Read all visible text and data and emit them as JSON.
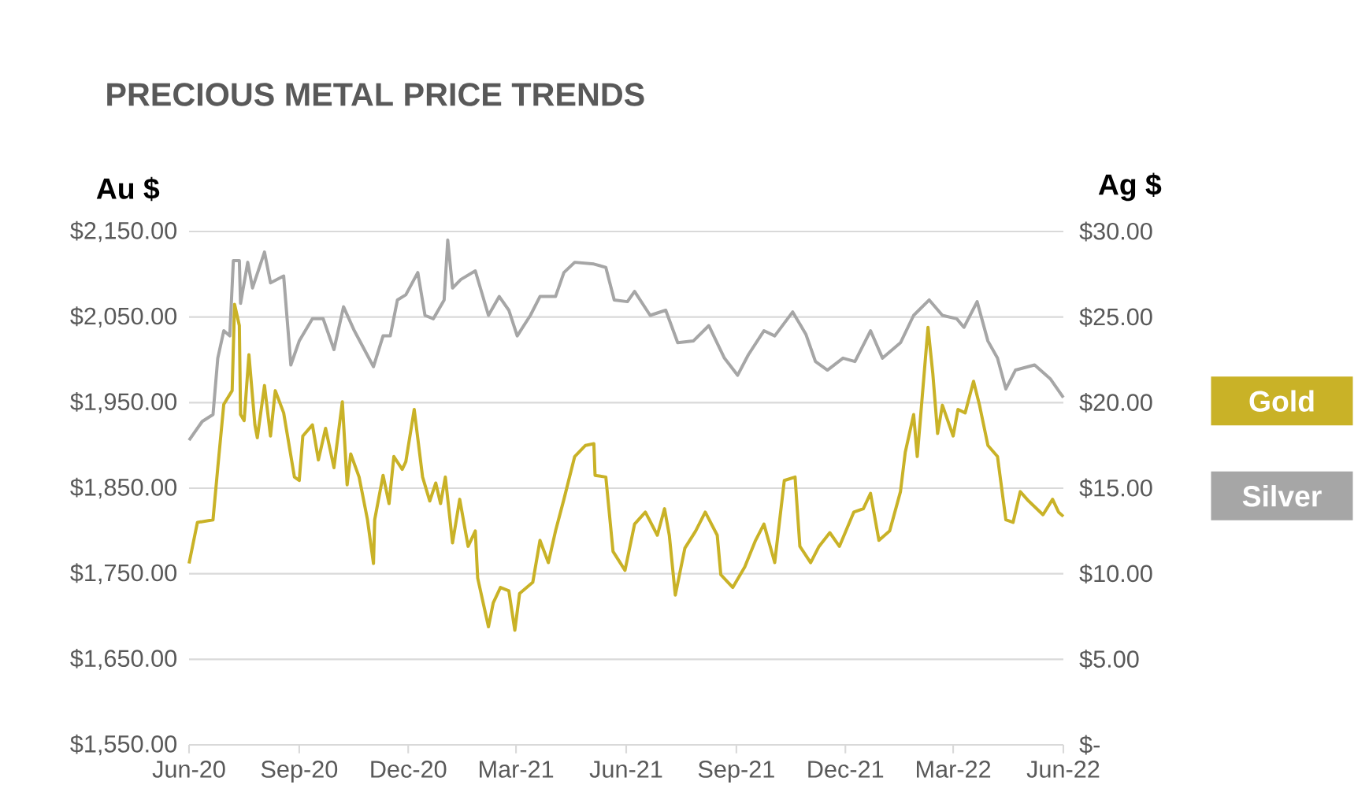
{
  "chart_data": {
    "type": "line",
    "title": "PRECIOUS METAL PRICE TRENDS",
    "ylabel": "Au $",
    "y2label": "Ag  $",
    "xlim": [
      "2020-06-01",
      "2022-06-01"
    ],
    "xticks": [
      {
        "value": "2020-06",
        "label": "Jun-20"
      },
      {
        "value": "2020-09",
        "label": "Sep-20"
      },
      {
        "value": "2020-12",
        "label": "Dec-20"
      },
      {
        "value": "2021-03",
        "label": "Mar-21"
      },
      {
        "value": "2021-06",
        "label": "Jun-21"
      },
      {
        "value": "2021-09",
        "label": "Sep-21"
      },
      {
        "value": "2021-12",
        "label": "Dec-21"
      },
      {
        "value": "2022-03",
        "label": "Mar-22"
      },
      {
        "value": "2022-06",
        "label": "Jun-22"
      }
    ],
    "ylim": [
      1550,
      2150
    ],
    "yticks": [
      {
        "value": 1550,
        "label": "$1,550.00"
      },
      {
        "value": 1650,
        "label": "$1,650.00"
      },
      {
        "value": 1750,
        "label": "$1,750.00"
      },
      {
        "value": 1850,
        "label": "$1,850.00"
      },
      {
        "value": 1950,
        "label": "$1,950.00"
      },
      {
        "value": 2050,
        "label": "$2,050.00"
      },
      {
        "value": 2150,
        "label": "$2,150.00"
      }
    ],
    "y2lim": [
      0,
      30
    ],
    "y2ticks": [
      {
        "value": 0,
        "label": "$-"
      },
      {
        "value": 5,
        "label": "$5.00"
      },
      {
        "value": 10,
        "label": "$10.00"
      },
      {
        "value": 15,
        "label": "$15.00"
      },
      {
        "value": 20,
        "label": "$20.00"
      },
      {
        "value": 25,
        "label": "$25.00"
      },
      {
        "value": 30,
        "label": "$30.00"
      }
    ],
    "grid": "y",
    "legend": "right",
    "line_style": "solid",
    "series": [
      {
        "name": "Gold",
        "color": "#c9b227",
        "axis": "y",
        "x": [
          "2020-06-01",
          "2020-06-08",
          "2020-06-21",
          "2020-06-25",
          "2020-06-30",
          "2020-07-07",
          "2020-07-09",
          "2020-07-13",
          "2020-07-14",
          "2020-07-17",
          "2020-07-21",
          "2020-07-26",
          "2020-07-28",
          "2020-08-03",
          "2020-08-08",
          "2020-08-12",
          "2020-08-19",
          "2020-08-28",
          "2020-09-01",
          "2020-09-04",
          "2020-09-12",
          "2020-09-17",
          "2020-09-23",
          "2020-09-30",
          "2020-10-07",
          "2020-10-11",
          "2020-10-14",
          "2020-10-21",
          "2020-10-28",
          "2020-11-02",
          "2020-11-03",
          "2020-11-10",
          "2020-11-15",
          "2020-11-19",
          "2020-11-26",
          "2020-11-29",
          "2020-12-06",
          "2020-12-13",
          "2020-12-19",
          "2020-12-24",
          "2020-12-28",
          "2021-01-01",
          "2021-01-07",
          "2021-01-13",
          "2021-01-20",
          "2021-01-26",
          "2021-01-28",
          "2021-02-06",
          "2021-02-10",
          "2021-02-16",
          "2021-02-23",
          "2021-02-28",
          "2021-03-04",
          "2021-03-15",
          "2021-03-21",
          "2021-03-28",
          "2021-04-03",
          "2021-04-10",
          "2021-04-19",
          "2021-04-28",
          "2021-05-05",
          "2021-05-06",
          "2021-05-15",
          "2021-05-21",
          "2021-05-31",
          "2021-06-08",
          "2021-06-17",
          "2021-06-27",
          "2021-07-03",
          "2021-07-07",
          "2021-07-12",
          "2021-07-20",
          "2021-07-29",
          "2021-08-06",
          "2021-08-16",
          "2021-08-19",
          "2021-08-29",
          "2021-09-08",
          "2021-09-17",
          "2021-09-24",
          "2021-10-03",
          "2021-10-11",
          "2021-10-20",
          "2021-10-24",
          "2021-11-02",
          "2021-11-09",
          "2021-11-18",
          "2021-11-26",
          "2021-12-08",
          "2021-12-16",
          "2021-12-22",
          "2021-12-29",
          "2022-01-07",
          "2022-01-16",
          "2022-01-20",
          "2022-01-27",
          "2022-01-30",
          "2022-02-08",
          "2022-02-12",
          "2022-02-16",
          "2022-02-20",
          "2022-03-01",
          "2022-03-05",
          "2022-03-11",
          "2022-03-18",
          "2022-03-23",
          "2022-03-30",
          "2022-04-07",
          "2022-04-14",
          "2022-04-20",
          "2022-04-26",
          "2022-05-03",
          "2022-05-15",
          "2022-05-23",
          "2022-05-28",
          "2022-06-01"
        ],
        "values": [
          1762,
          1810,
          1813,
          1874,
          1948,
          1964,
          2065,
          2040,
          1936,
          1929,
          2006,
          1924,
          1909,
          1970,
          1911,
          1964,
          1938,
          1863,
          1859,
          1911,
          1924,
          1883,
          1920,
          1874,
          1951,
          1854,
          1890,
          1863,
          1813,
          1762,
          1813,
          1865,
          1832,
          1887,
          1872,
          1881,
          1942,
          1863,
          1835,
          1856,
          1832,
          1863,
          1786,
          1837,
          1782,
          1800,
          1745,
          1688,
          1716,
          1734,
          1730,
          1684,
          1727,
          1740,
          1789,
          1763,
          1800,
          1837,
          1887,
          1900,
          1902,
          1865,
          1863,
          1776,
          1754,
          1808,
          1822,
          1795,
          1826,
          1795,
          1725,
          1780,
          1800,
          1822,
          1795,
          1749,
          1734,
          1758,
          1789,
          1808,
          1763,
          1859,
          1863,
          1782,
          1763,
          1782,
          1798,
          1782,
          1822,
          1826,
          1844,
          1789,
          1800,
          1846,
          1892,
          1936,
          1887,
          2038,
          1984,
          1914,
          1947,
          1911,
          1942,
          1938,
          1975,
          1947,
          1900,
          1887,
          1813,
          1810,
          1846,
          1835,
          1819,
          1837,
          1822,
          1817
        ]
      },
      {
        "name": "Silver",
        "color": "#a6a6a6",
        "axis": "y2",
        "x": [
          "2020-06-01",
          "2020-06-12",
          "2020-06-21",
          "2020-06-25",
          "2020-06-30",
          "2020-07-05",
          "2020-07-08",
          "2020-07-13",
          "2020-07-14",
          "2020-07-20",
          "2020-07-24",
          "2020-08-03",
          "2020-08-08",
          "2020-08-19",
          "2020-08-25",
          "2020-09-01",
          "2020-09-12",
          "2020-09-21",
          "2020-09-30",
          "2020-10-08",
          "2020-10-17",
          "2020-11-02",
          "2020-11-10",
          "2020-11-16",
          "2020-11-22",
          "2020-11-29",
          "2020-12-09",
          "2020-12-15",
          "2020-12-22",
          "2020-12-31",
          "2021-01-03",
          "2021-01-07",
          "2021-01-14",
          "2021-01-26",
          "2021-02-06",
          "2021-02-15",
          "2021-02-23",
          "2021-03-02",
          "2021-03-13",
          "2021-03-21",
          "2021-04-03",
          "2021-04-10",
          "2021-04-19",
          "2021-05-05",
          "2021-05-15",
          "2021-05-22",
          "2021-06-02",
          "2021-06-08",
          "2021-06-21",
          "2021-07-04",
          "2021-07-14",
          "2021-07-27",
          "2021-08-09",
          "2021-08-22",
          "2021-09-02",
          "2021-09-11",
          "2021-09-24",
          "2021-10-03",
          "2021-10-18",
          "2021-10-29",
          "2021-11-06",
          "2021-11-16",
          "2021-11-29",
          "2021-12-09",
          "2021-12-22",
          "2022-01-01",
          "2022-01-16",
          "2022-01-27",
          "2022-02-09",
          "2022-02-20",
          "2022-03-04",
          "2022-03-10",
          "2022-03-21",
          "2022-03-30",
          "2022-04-07",
          "2022-04-14",
          "2022-04-22",
          "2022-05-08",
          "2022-05-21",
          "2022-06-01"
        ],
        "values": [
          17.8,
          18.9,
          19.3,
          22.6,
          24.2,
          23.9,
          28.3,
          28.3,
          25.8,
          28.2,
          26.7,
          28.8,
          27.0,
          27.4,
          22.2,
          23.6,
          24.9,
          24.9,
          23.1,
          25.6,
          24.2,
          22.1,
          23.9,
          23.9,
          26.0,
          26.3,
          27.6,
          25.1,
          24.9,
          26.0,
          29.5,
          26.7,
          27.2,
          27.7,
          25.1,
          26.2,
          25.4,
          23.9,
          25.1,
          26.2,
          26.2,
          27.6,
          28.2,
          28.1,
          27.9,
          26.0,
          25.9,
          26.5,
          25.1,
          25.4,
          23.5,
          23.6,
          24.5,
          22.6,
          21.6,
          22.8,
          24.2,
          23.9,
          25.3,
          24.0,
          22.4,
          21.9,
          22.6,
          22.4,
          24.2,
          22.6,
          23.5,
          25.1,
          26.0,
          25.1,
          24.9,
          24.4,
          25.9,
          23.6,
          22.6,
          20.8,
          21.9,
          22.2,
          21.4,
          20.3
        ]
      }
    ]
  }
}
